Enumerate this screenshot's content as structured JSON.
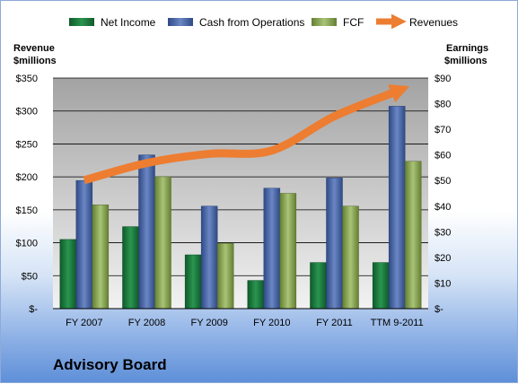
{
  "chart_data": {
    "type": "bar",
    "categories": [
      "FY 2007",
      "FY 2008",
      "FY 2009",
      "FY 2010",
      "FY 2011",
      "TTM 9-2011"
    ],
    "series": [
      {
        "name": "Net Income",
        "axis": "right",
        "color": "#1e7a3e",
        "values": [
          27,
          32,
          21,
          11,
          18,
          18
        ]
      },
      {
        "name": "Cash from Operations",
        "axis": "right",
        "color": "#4a67a8",
        "values": [
          50,
          60,
          40,
          47,
          51,
          79
        ]
      },
      {
        "name": "FCF",
        "axis": "right",
        "color": "#8aa856",
        "values": [
          40.5,
          51.5,
          25.5,
          45,
          40,
          57.5
        ]
      },
      {
        "name": "Revenues",
        "axis": "left",
        "type": "line",
        "color": "#ed7d31",
        "values": [
          195,
          221,
          235,
          240,
          292,
          330
        ]
      }
    ],
    "left_axis": {
      "label_line1": "Revenue",
      "label_line2": "$millions",
      "ylim": [
        0,
        350
      ],
      "ticks": [
        0,
        50,
        100,
        150,
        200,
        250,
        300,
        350
      ],
      "tick_labels": [
        "$-",
        "$50",
        "$100",
        "$150",
        "$200",
        "$250",
        "$300",
        "$350"
      ]
    },
    "right_axis": {
      "label_line1": "Earnings",
      "label_line2": "$millions",
      "ylim": [
        0,
        90
      ],
      "ticks": [
        0,
        10,
        20,
        30,
        40,
        50,
        60,
        70,
        80,
        90
      ],
      "tick_labels": [
        "$-",
        "$10",
        "$20",
        "$30",
        "$40",
        "$50",
        "$60",
        "$70",
        "$80",
        "$90"
      ]
    },
    "legend_position": "top",
    "grid": true
  },
  "footer": {
    "title": "Advisory Board"
  }
}
